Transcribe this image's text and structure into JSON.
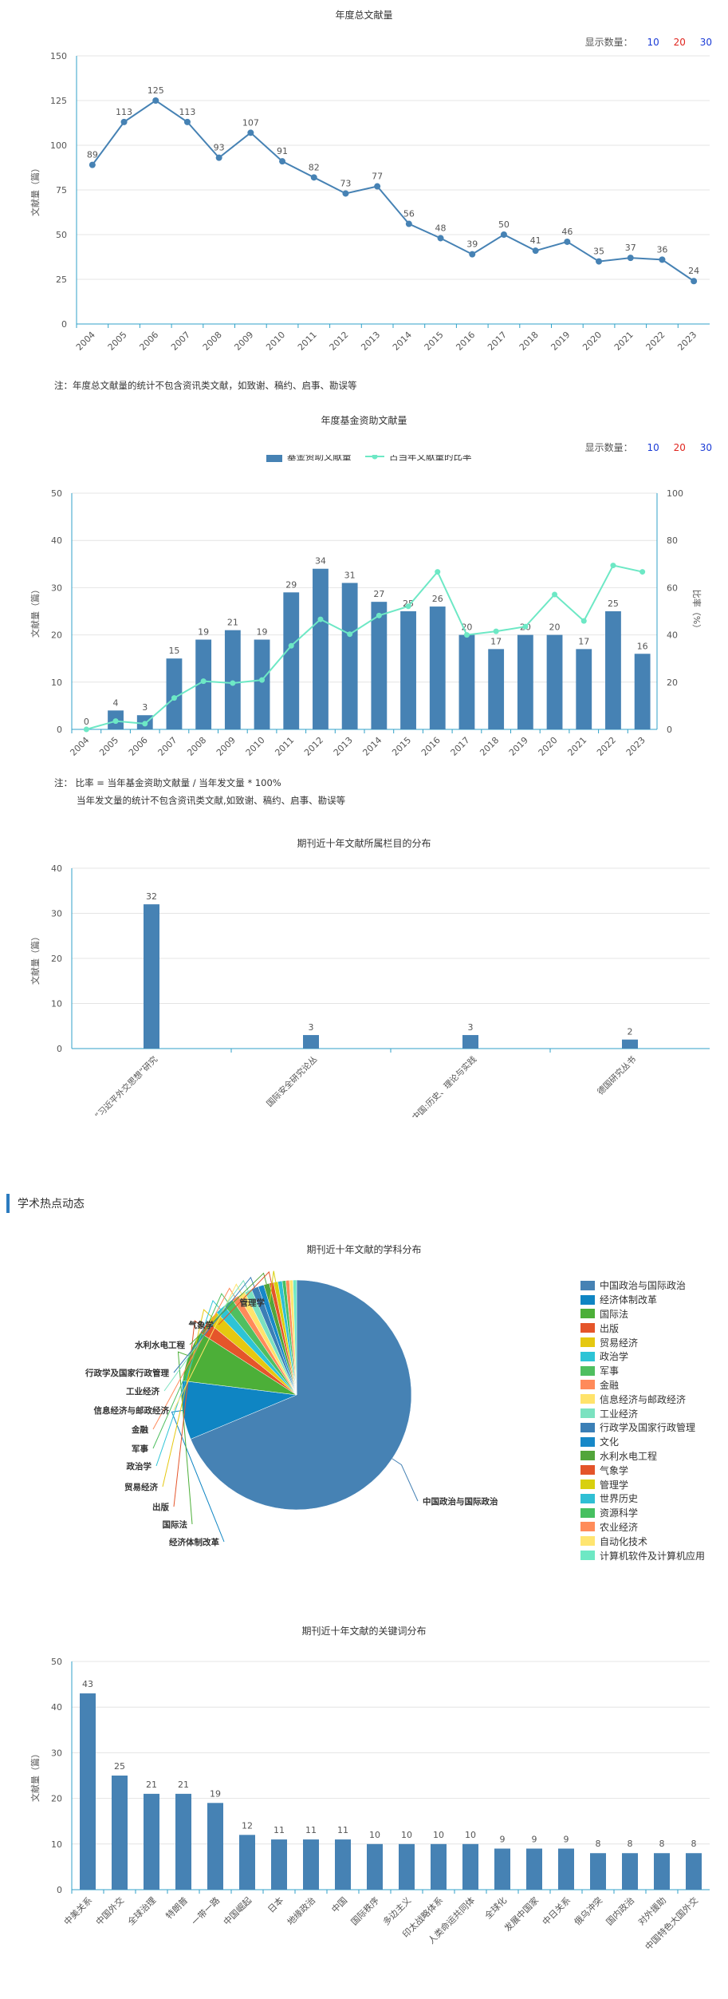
{
  "chart1": {
    "title": "年度总文献量",
    "showcount_label": "显示数量：",
    "showcount_options": [
      "10",
      "20",
      "30"
    ],
    "note": "注：年度总文献量的统计不包含资讯类文献，如致谢、稿约、启事、勘误等"
  },
  "chart2": {
    "title": "年度基金资助文献量",
    "showcount_label": "显示数量：",
    "showcount_options": [
      "10",
      "20",
      "30"
    ],
    "note_line1": "注： 比率 = 当年基金资助文献量 / 当年发文量 * 100%",
    "note_line2": "当年发文量的统计不包含资讯类文献,如致谢、稿约、启事、勘误等"
  },
  "chart3": {
    "title": "期刊近十年文献所属栏目的分布"
  },
  "section": {
    "title": "学术热点动态"
  },
  "chart4": {
    "title": "期刊近十年文献的学科分布"
  },
  "chart5": {
    "title": "期刊近十年文献的关键词分布"
  },
  "colors": {
    "accent": "#4682b4",
    "axis": "#30a2c8",
    "line2": "#6de8c5",
    "count10": "#1a3bd6",
    "count20": "#e0261f",
    "count30": "#1a3bd6"
  },
  "chart_data": [
    {
      "type": "line",
      "title": "年度总文献量",
      "ylabel": "文献量（篇）",
      "categories": [
        "2004",
        "2005",
        "2006",
        "2007",
        "2008",
        "2009",
        "2010",
        "2011",
        "2012",
        "2013",
        "2014",
        "2015",
        "2016",
        "2017",
        "2018",
        "2019",
        "2020",
        "2021",
        "2022",
        "2023"
      ],
      "values": [
        89,
        113,
        125,
        113,
        93,
        107,
        91,
        82,
        73,
        77,
        56,
        48,
        39,
        50,
        41,
        46,
        35,
        37,
        36,
        24
      ],
      "ylim": [
        0,
        150
      ],
      "yticks": [
        0,
        25,
        50,
        75,
        100,
        125,
        150
      ],
      "grid": true
    },
    {
      "type": "bar",
      "title": "年度基金资助文献量",
      "ylabel": "文献量（篇）",
      "y2label": "比率（%）",
      "categories": [
        "2004",
        "2005",
        "2006",
        "2007",
        "2008",
        "2009",
        "2010",
        "2011",
        "2012",
        "2013",
        "2014",
        "2015",
        "2016",
        "2017",
        "2018",
        "2019",
        "2020",
        "2021",
        "2022",
        "2023"
      ],
      "series": [
        {
          "name": "基金资助文献量",
          "values": [
            0,
            4,
            3,
            15,
            19,
            21,
            19,
            29,
            34,
            31,
            27,
            25,
            26,
            20,
            17,
            20,
            20,
            17,
            25,
            16
          ]
        },
        {
          "name": "占当年文献量的比率",
          "values": [
            0,
            3.5,
            2.4,
            13.3,
            20.4,
            19.6,
            20.9,
            35.4,
            46.6,
            40.3,
            48.2,
            52.1,
            66.7,
            40.0,
            41.5,
            43.5,
            57.1,
            45.9,
            69.4,
            66.7
          ]
        }
      ],
      "ylim": [
        0,
        50
      ],
      "yticks": [
        0,
        10,
        20,
        30,
        40,
        50
      ],
      "y2lim": [
        0,
        100
      ],
      "y2ticks": [
        0,
        20,
        40,
        60,
        80,
        100
      ],
      "legend": "top-center",
      "grid": true
    },
    {
      "type": "bar",
      "title": "期刊近十年文献所属栏目的分布",
      "ylabel": "文献量（篇）",
      "categories": [
        "“习近平外交思想”研究",
        "国际安全研究论丛",
        "百年视角下的中国:历史、理论与实践",
        "德国研究丛书"
      ],
      "values": [
        32,
        3,
        3,
        2
      ],
      "ylim": [
        0,
        40
      ],
      "yticks": [
        0,
        10,
        20,
        30,
        40
      ],
      "grid": true
    },
    {
      "type": "pie",
      "title": "期刊近十年文献的学科分布",
      "labels": [
        "中国政治与国际政治",
        "经济体制改革",
        "国际法",
        "出版",
        "贸易经济",
        "政治学",
        "军事",
        "金融",
        "信息经济与邮政经济",
        "工业经济",
        "行政学及国家行政管理",
        "文化",
        "水利水电工程",
        "气象学",
        "管理学",
        "世界历史",
        "资源科学",
        "农业经济",
        "自动化技术",
        "计算机软件及计算机应用"
      ],
      "values": [
        68.3,
        8.2,
        7.1,
        1.8,
        1.8,
        1.4,
        1.4,
        1.0,
        1.0,
        1.0,
        1.0,
        0.8,
        0.8,
        0.6,
        0.6,
        0.6,
        0.5,
        0.5,
        0.5,
        0.5
      ],
      "colors": [
        "#4682b4",
        "#0f85c3",
        "#4caf38",
        "#e5552a",
        "#e5c810",
        "#2dc4d6",
        "#4fbf60",
        "#ff8a5a",
        "#ffe36b",
        "#7be2c0",
        "#3b7fb6",
        "#1788c8",
        "#52a53a",
        "#e4542a",
        "#d8d00e",
        "#2fbfd4",
        "#46c060",
        "#ff8c5a",
        "#ffe570",
        "#6ee8c4"
      ],
      "legend": "right"
    },
    {
      "type": "bar",
      "title": "期刊近十年文献的关键词分布",
      "ylabel": "文献量（篇）",
      "categories": [
        "中美关系",
        "中国外交",
        "全球治理",
        "特朗普",
        "一带一路",
        "中国崛起",
        "日本",
        "地缘政治",
        "中国",
        "国际秩序",
        "多边主义",
        "印太战略体系",
        "人类命运共同体",
        "全球化",
        "发展中国家",
        "中日关系",
        "俄乌冲突",
        "国内政治",
        "对外援助",
        "中国特色大国外交"
      ],
      "values": [
        43,
        25,
        21,
        21,
        19,
        12,
        11,
        11,
        11,
        10,
        10,
        10,
        10,
        9,
        9,
        9,
        8,
        8,
        8,
        8
      ],
      "ylim": [
        0,
        50
      ],
      "yticks": [
        0,
        10,
        20,
        30,
        40,
        50
      ],
      "grid": true
    }
  ]
}
